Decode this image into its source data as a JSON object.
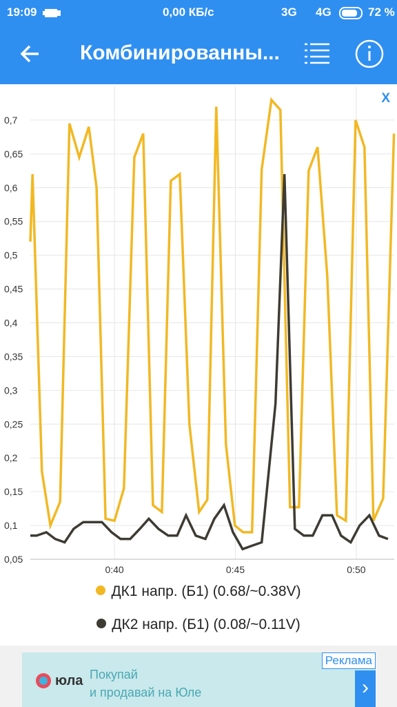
{
  "status_bar": {
    "time": "19:09",
    "speed": "0,00 КБ/с",
    "net1": "3G",
    "net2": "4G",
    "battery": "72 %"
  },
  "app_bar": {
    "title": "Комбинированны..."
  },
  "close": "X",
  "chart_data": {
    "type": "line",
    "xlim": [
      36.52,
      51.57
    ],
    "ylim": [
      0.05,
      0.75
    ],
    "xticks": [
      {
        "value": 40,
        "label": "0:40"
      },
      {
        "value": 45,
        "label": "0:45"
      },
      {
        "value": 50,
        "label": "0:50"
      }
    ],
    "yticks": [
      {
        "value": 0.05,
        "label": "0,05"
      },
      {
        "value": 0.1,
        "label": "0,1"
      },
      {
        "value": 0.15,
        "label": "0,15"
      },
      {
        "value": 0.2,
        "label": "0,2"
      },
      {
        "value": 0.25,
        "label": "0,25"
      },
      {
        "value": 0.3,
        "label": "0,3"
      },
      {
        "value": 0.35,
        "label": "0,35"
      },
      {
        "value": 0.4,
        "label": "0,4"
      },
      {
        "value": 0.45,
        "label": "0,45"
      },
      {
        "value": 0.5,
        "label": "0,5"
      },
      {
        "value": 0.55,
        "label": "0,55"
      },
      {
        "value": 0.6,
        "label": "0,6"
      },
      {
        "value": 0.65,
        "label": "0,65"
      },
      {
        "value": 0.7,
        "label": "0,7"
      }
    ],
    "grid": true,
    "series": [
      {
        "name": "ДК1 напр. (Б1) (0.68/~0.38V)",
        "color": "#f2b824",
        "x": [
          36.52,
          36.61,
          37.0,
          37.35,
          37.75,
          38.14,
          38.54,
          38.94,
          39.26,
          39.63,
          40.0,
          40.39,
          40.82,
          41.19,
          41.59,
          41.96,
          42.33,
          42.7,
          43.1,
          43.5,
          43.84,
          44.21,
          44.61,
          44.98,
          45.32,
          45.69,
          46.09,
          46.49,
          46.86,
          47.26,
          47.63,
          48.03,
          48.4,
          48.8,
          49.2,
          49.57,
          49.97,
          50.34,
          50.71,
          51.11,
          51.56
        ],
        "values": [
          0.52,
          0.62,
          0.18,
          0.1,
          0.135,
          0.695,
          0.645,
          0.69,
          0.6,
          0.11,
          0.107,
          0.155,
          0.645,
          0.68,
          0.13,
          0.12,
          0.61,
          0.62,
          0.25,
          0.12,
          0.138,
          0.72,
          0.22,
          0.1,
          0.09,
          0.09,
          0.627,
          0.73,
          0.715,
          0.127,
          0.127,
          0.625,
          0.66,
          0.47,
          0.115,
          0.107,
          0.7,
          0.66,
          0.107,
          0.14,
          0.68
        ]
      },
      {
        "name": "ДК2 напр. (Б1) (0.08/~0.11V)",
        "color": "#3d3b33",
        "x": [
          36.52,
          36.78,
          37.18,
          37.55,
          37.94,
          38.31,
          38.71,
          39.11,
          39.48,
          39.88,
          40.25,
          40.65,
          41.05,
          41.42,
          41.82,
          42.22,
          42.59,
          42.96,
          43.36,
          43.76,
          44.13,
          44.53,
          44.9,
          45.3,
          45.69,
          46.09,
          46.66,
          47.03,
          47.46,
          47.83,
          48.2,
          48.6,
          49.0,
          49.37,
          49.77,
          50.14,
          50.54,
          50.94,
          51.31
        ],
        "values": [
          0.085,
          0.085,
          0.09,
          0.08,
          0.075,
          0.095,
          0.105,
          0.105,
          0.105,
          0.09,
          0.08,
          0.08,
          0.095,
          0.11,
          0.095,
          0.085,
          0.085,
          0.115,
          0.085,
          0.08,
          0.11,
          0.13,
          0.09,
          0.065,
          0.07,
          0.075,
          0.28,
          0.62,
          0.095,
          0.085,
          0.085,
          0.115,
          0.115,
          0.085,
          0.075,
          0.1,
          0.115,
          0.085,
          0.08
        ]
      }
    ]
  },
  "ad": {
    "tag": "Реклама",
    "logo": "юла",
    "line1": "Покупай",
    "line2": "и продавай на Юле"
  }
}
